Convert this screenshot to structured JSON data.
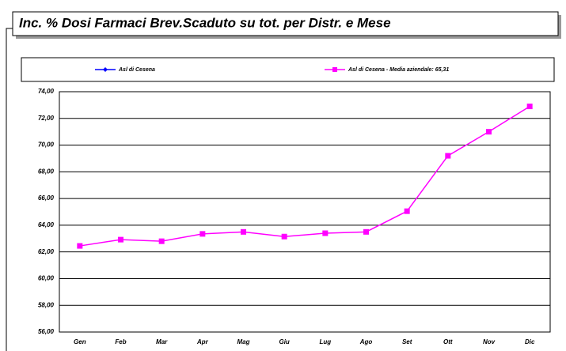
{
  "chart_data": {
    "type": "line",
    "title": "Inc. % Dosi Farmaci Brev.Scaduto su tot. per Distr. e Mese",
    "categories": [
      "Gen",
      "Feb",
      "Mar",
      "Apr",
      "Mag",
      "Giu",
      "Lug",
      "Ago",
      "Set",
      "Ott",
      "Nov",
      "Dic"
    ],
    "series": [
      {
        "name": "Asl di Cesena",
        "color": "#0000ff",
        "values": [
          null,
          null,
          null,
          null,
          null,
          null,
          null,
          null,
          null,
          null,
          null,
          null
        ]
      },
      {
        "name": "Asl di Cesena - Media aziendale: 65,31",
        "color": "#ff00ff",
        "values": [
          62.45,
          62.92,
          62.8,
          63.35,
          63.5,
          63.15,
          63.4,
          63.5,
          65.05,
          69.2,
          71.0,
          72.9
        ]
      }
    ],
    "ylim": [
      56,
      74
    ],
    "yticks": [
      {
        "value": 56,
        "label": "56,00"
      },
      {
        "value": 58,
        "label": "58,00"
      },
      {
        "value": 60,
        "label": "60,00"
      },
      {
        "value": 62,
        "label": "62,00"
      },
      {
        "value": 64,
        "label": "64,00"
      },
      {
        "value": 66,
        "label": "66,00"
      },
      {
        "value": 68,
        "label": "68,00"
      },
      {
        "value": 70,
        "label": "70,00"
      },
      {
        "value": 72,
        "label": "72,00"
      },
      {
        "value": 74,
        "label": "74,00"
      }
    ],
    "grid": true
  }
}
